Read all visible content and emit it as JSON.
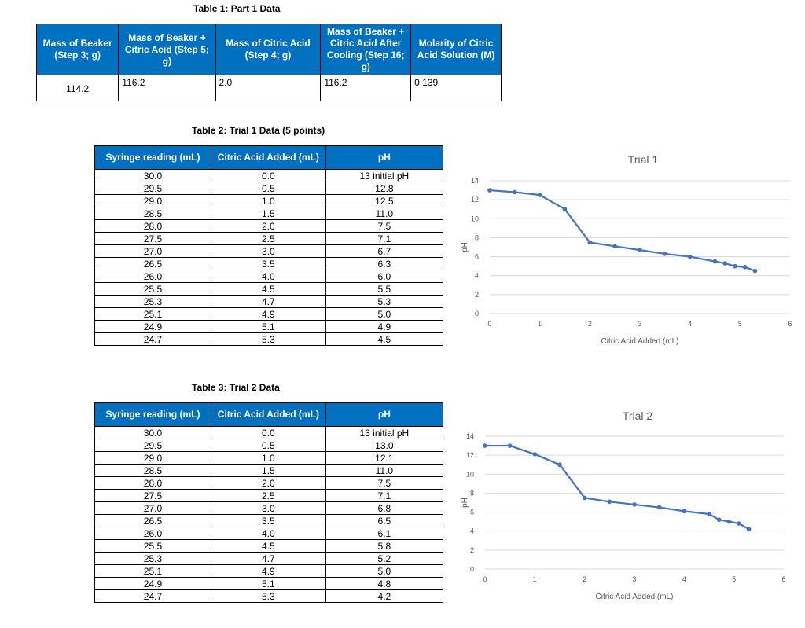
{
  "table1": {
    "caption": "Table 1: Part 1 Data",
    "headers": [
      "Mass of Beaker (Step 3; g)",
      "Mass of Beaker + Citric Acid (Step 5; g)",
      "Mass of Citric Acid (Step 4; g)",
      "Mass of Beaker + Citric Acid After Cooling (Step 16; g)",
      "Molarity of Citric Acid Solution (M)"
    ],
    "row": [
      "114.2",
      "116.2",
      "2.0",
      "116.2",
      "0.139"
    ]
  },
  "table2": {
    "caption": "Table 2: Trial 1 Data (5 points)",
    "headers": [
      "Syringe reading (mL)",
      "Citric Acid Added (mL)",
      "pH"
    ],
    "rows": [
      [
        "30.0",
        "0.0",
        "13 initial pH"
      ],
      [
        "29.5",
        "0.5",
        "12.8"
      ],
      [
        "29.0",
        "1.0",
        "12.5"
      ],
      [
        "28.5",
        "1.5",
        "11.0"
      ],
      [
        "28.0",
        "2.0",
        "7.5"
      ],
      [
        "27.5",
        "2.5",
        "7.1"
      ],
      [
        "27.0",
        "3.0",
        "6.7"
      ],
      [
        "26.5",
        "3.5",
        "6.3"
      ],
      [
        "26.0",
        "4.0",
        "6.0"
      ],
      [
        "25.5",
        "4.5",
        "5.5"
      ],
      [
        "25.3",
        "4.7",
        "5.3"
      ],
      [
        "25.1",
        "4.9",
        "5.0"
      ],
      [
        "24.9",
        "5.1",
        "4.9"
      ],
      [
        "24.7",
        "5.3",
        "4.5"
      ]
    ]
  },
  "table3": {
    "caption": "Table 3: Trial 2 Data",
    "headers": [
      "Syringe reading (mL)",
      "Citric Acid Added (mL)",
      "pH"
    ],
    "rows": [
      [
        "30.0",
        "0.0",
        "13 initial pH"
      ],
      [
        "29.5",
        "0.5",
        "13.0"
      ],
      [
        "29.0",
        "1.0",
        "12.1"
      ],
      [
        "28.5",
        "1.5",
        "11.0"
      ],
      [
        "28.0",
        "2.0",
        "7.5"
      ],
      [
        "27.5",
        "2.5",
        "7.1"
      ],
      [
        "27.0",
        "3.0",
        "6.8"
      ],
      [
        "26.5",
        "3.5",
        "6.5"
      ],
      [
        "26.0",
        "4.0",
        "6.1"
      ],
      [
        "25.5",
        "4.5",
        "5.8"
      ],
      [
        "25.3",
        "4.7",
        "5.2"
      ],
      [
        "25.1",
        "4.9",
        "5.0"
      ],
      [
        "24.9",
        "5.1",
        "4.8"
      ],
      [
        "24.7",
        "5.3",
        "4.2"
      ]
    ]
  },
  "chart_data": [
    {
      "type": "line",
      "title": "Trial 1",
      "xlabel": "Citric Acid Added (mL)",
      "ylabel": "pH",
      "xlim": [
        0,
        6
      ],
      "ylim": [
        0,
        14
      ],
      "xticks": [
        0,
        1,
        2,
        3,
        4,
        5,
        6
      ],
      "yticks": [
        0,
        2,
        4,
        6,
        8,
        10,
        12,
        14
      ],
      "grid": true,
      "color": "#4472c4",
      "x": [
        0,
        0.5,
        1,
        1.5,
        2,
        2.5,
        3,
        3.5,
        4,
        4.5,
        4.7,
        4.9,
        5.1,
        5.3
      ],
      "y": [
        13,
        12.8,
        12.5,
        11,
        7.5,
        7.1,
        6.7,
        6.3,
        6,
        5.5,
        5.3,
        5,
        4.9,
        4.5
      ]
    },
    {
      "type": "line",
      "title": "Trial 2",
      "xlabel": "Citric Acid Added (mL)",
      "ylabel": "pH",
      "xlim": [
        0,
        6
      ],
      "ylim": [
        0,
        14
      ],
      "xticks": [
        0,
        1,
        2,
        3,
        4,
        5,
        6
      ],
      "yticks": [
        0,
        2,
        4,
        6,
        8,
        10,
        12,
        14
      ],
      "grid": true,
      "color": "#4472c4",
      "x": [
        0,
        0.5,
        1,
        1.5,
        2,
        2.5,
        3,
        3.5,
        4,
        4.5,
        4.7,
        4.9,
        5.1,
        5.3
      ],
      "y": [
        13,
        13,
        12.1,
        11,
        7.5,
        7.1,
        6.8,
        6.5,
        6.1,
        5.8,
        5.2,
        5,
        4.8,
        4.2
      ]
    }
  ]
}
